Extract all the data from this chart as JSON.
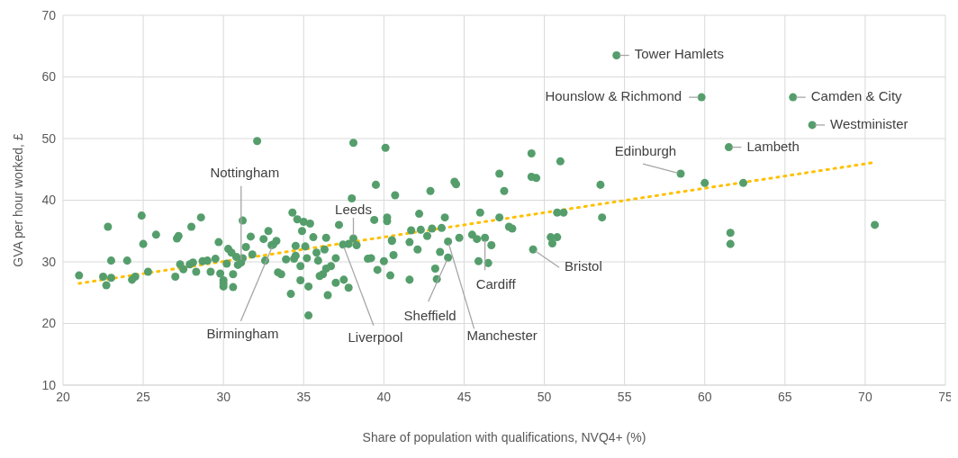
{
  "chart_data": {
    "type": "scatter",
    "xlabel": "Share of population with qualifications, NVQ4+ (%)",
    "ylabel": "GVA per hour worked, £",
    "xlim": [
      20,
      75
    ],
    "xticks": [
      20,
      25,
      30,
      35,
      40,
      45,
      50,
      55,
      60,
      65,
      70,
      75
    ],
    "ylim": [
      10,
      70
    ],
    "yticks": [
      10,
      20,
      30,
      40,
      50,
      60,
      70
    ],
    "grid": true,
    "legend": false,
    "marker": "circle",
    "series": [
      {
        "color": "#559e6c",
        "x": [
          21,
          22.5,
          22.7,
          22.8,
          23,
          23,
          24,
          24.3,
          24.5,
          24.9,
          25,
          25.3,
          25.8,
          27,
          27.1,
          27.2,
          27.3,
          27.5,
          27.9,
          28,
          28.1,
          28.3,
          28.6,
          28.7,
          29,
          29.2,
          29.5,
          29.7,
          29.8,
          30,
          30,
          30,
          30.2,
          30.3,
          30.5,
          30.6,
          30.6,
          30.8,
          30.9,
          31.1,
          31.2,
          31.2,
          31.4,
          31.7,
          31.8,
          32.1,
          32.5,
          32.6,
          32.8,
          33,
          33.1,
          33.3,
          33.4,
          33.6,
          33.9,
          34.2,
          34.3,
          34.4,
          34.5,
          34.5,
          34.6,
          34.8,
          34.8,
          34.9,
          35,
          35.1,
          35.2,
          35.3,
          35.3,
          35.4,
          35.6,
          35.8,
          35.9,
          36,
          36.2,
          36.3,
          36.4,
          36.4,
          36.5,
          36.7,
          37,
          37,
          37.2,
          37.45,
          37.5,
          37.8,
          37.8,
          38.1,
          38,
          38.1,
          38.3,
          39,
          39.2,
          39.4,
          39.5,
          39.6,
          40,
          40.1,
          40.2,
          40.2,
          40.4,
          40.5,
          40.5,
          40.6,
          40.7,
          41.6,
          41.6,
          41.7,
          42.1,
          42.2,
          42.3,
          42.7,
          42.9,
          43,
          43.2,
          43.3,
          43.5,
          43.6,
          43.8,
          44,
          44,
          44.4,
          44.5,
          44.7,
          45.5,
          45.8,
          45.9,
          46,
          46.3,
          46.5,
          46.7,
          47.2,
          47.2,
          47.5,
          47.8,
          48,
          49.2,
          49.2,
          49.3,
          49.5,
          50.4,
          50.5,
          50.8,
          50.8,
          51,
          51.2,
          53.5,
          53.6,
          54.5,
          58.5,
          59.8,
          60,
          61.5,
          61.6,
          61.6,
          62.4,
          65.5,
          66.7,
          70.6
        ],
        "values": [
          27.8,
          27.6,
          26.2,
          35.7,
          30.2,
          27.4,
          30.2,
          27.1,
          27.6,
          37.5,
          32.9,
          28.4,
          34.4,
          27.6,
          33.8,
          34.2,
          29.6,
          28.8,
          29.6,
          35.7,
          29.9,
          28.4,
          37.2,
          30.1,
          30.2,
          28.4,
          30.5,
          33.2,
          28.1,
          27,
          26.5,
          26,
          29.7,
          32.1,
          31.5,
          25.9,
          28,
          30.8,
          29.5,
          29.9,
          36.7,
          30.6,
          32.4,
          34.1,
          31.2,
          49.6,
          33.7,
          30.2,
          35,
          32.7,
          32.8,
          33.4,
          28.3,
          28,
          30.4,
          24.8,
          38,
          30.5,
          32.6,
          31,
          36.9,
          27,
          29.3,
          35,
          36.5,
          32.5,
          30.6,
          26,
          21.3,
          36.2,
          34,
          31.5,
          30.2,
          27.7,
          28,
          32,
          33.9,
          28.9,
          24.6,
          29.3,
          30.6,
          26.6,
          36,
          32.8,
          27.1,
          25.8,
          32.9,
          33.8,
          40.3,
          49.3,
          32.7,
          30.5,
          30.6,
          36.8,
          42.5,
          28.7,
          30.1,
          48.5,
          37.2,
          36.6,
          27.8,
          33.5,
          33.4,
          31.1,
          40.8,
          27.1,
          33.2,
          35.1,
          32,
          37.8,
          35.2,
          34.2,
          41.5,
          35.4,
          28.9,
          27.2,
          31.6,
          35.5,
          37.2,
          33.3,
          30.7,
          43,
          42.6,
          33.9,
          34.4,
          33.7,
          30.1,
          38,
          33.9,
          29.8,
          32.7,
          44.3,
          37.2,
          41.5,
          35.7,
          35.4,
          47.6,
          43.8,
          32,
          43.6,
          34,
          33,
          34,
          38,
          46.3,
          38,
          42.5,
          37.2,
          63.5,
          44.3,
          56.7,
          42.8,
          48.6,
          34.7,
          32.9,
          42.8,
          56.7,
          52.2,
          36
        ]
      },
      {
        "type": "line",
        "color": "#ffc000",
        "line_style": "dotted",
        "marker": "none",
        "x": [
          21,
          70.5
        ],
        "values": [
          26.5,
          46.1
        ]
      }
    ],
    "annotations": [
      {
        "text": "Tower Hamlets",
        "x": 54.5,
        "y": 63.5
      },
      {
        "text": "Hounslow & Richmond",
        "x": 59.8,
        "y": 56.7
      },
      {
        "text": "Camden & City",
        "x": 65.5,
        "y": 56.7
      },
      {
        "text": "Westminister",
        "x": 66.7,
        "y": 52.2
      },
      {
        "text": "Lambeth",
        "x": 61.5,
        "y": 48.6
      },
      {
        "text": "Edinburgh",
        "x": 58.5,
        "y": 44.3
      },
      {
        "text": "Bristol",
        "x": 49.3,
        "y": 32
      },
      {
        "text": "Cardiff",
        "x": 46.3,
        "y": 33.9
      },
      {
        "text": "Manchester",
        "x": 44,
        "y": 33.3
      },
      {
        "text": "Sheffield",
        "x": 44,
        "y": 30.7
      },
      {
        "text": "Liverpool",
        "x": 37.45,
        "y": 32.8
      },
      {
        "text": "Leeds",
        "x": 38.1,
        "y": 33.8
      },
      {
        "text": "Nottingham",
        "x": 31.1,
        "y": 29.9
      },
      {
        "text": "Birmingham",
        "x": 33.1,
        "y": 32.8
      }
    ]
  }
}
